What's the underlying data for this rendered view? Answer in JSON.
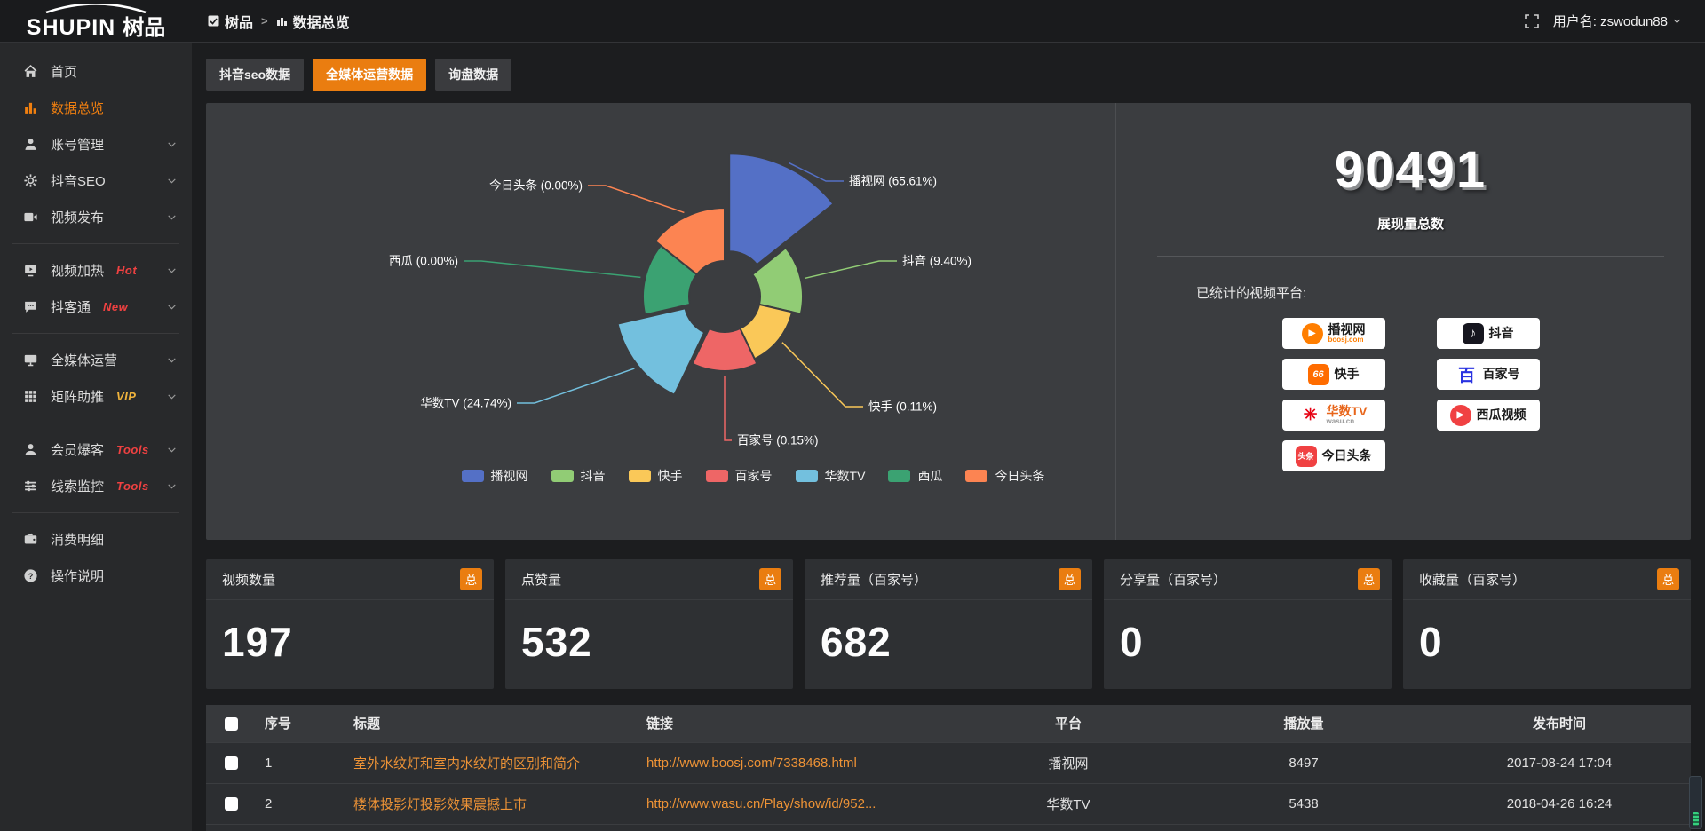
{
  "topbar": {
    "logo_en": "SHUPIN",
    "logo_cn": "树品",
    "breadcrumb": [
      "树品",
      "数据总览"
    ],
    "breadcrumb_sep": ">",
    "username": "用户名: zswodun88"
  },
  "sidebar": {
    "items": [
      {
        "label": "首页",
        "icon": "home",
        "active": false,
        "chevron": false,
        "divider_after": false
      },
      {
        "label": "数据总览",
        "icon": "chart",
        "active": true,
        "chevron": false,
        "divider_after": false
      },
      {
        "label": "账号管理",
        "icon": "user",
        "active": false,
        "chevron": true,
        "divider_after": false
      },
      {
        "label": "抖音SEO",
        "icon": "gear",
        "active": false,
        "chevron": true,
        "divider_after": false
      },
      {
        "label": "视频发布",
        "icon": "video",
        "active": false,
        "chevron": true,
        "divider_after": true
      },
      {
        "label": "视频加热",
        "icon": "heat",
        "badge": "Hot",
        "badge_color": "#ef4141",
        "active": false,
        "chevron": true,
        "divider_after": false
      },
      {
        "label": "抖客通",
        "icon": "chat",
        "badge": "New",
        "badge_color": "#ef4141",
        "active": false,
        "chevron": true,
        "divider_after": true
      },
      {
        "label": "全媒体运营",
        "icon": "monitor",
        "active": false,
        "chevron": true,
        "divider_after": false
      },
      {
        "label": "矩阵助推",
        "icon": "grid",
        "badge": "VIP",
        "badge_color": "#f0b33c",
        "active": false,
        "chevron": true,
        "divider_after": true
      },
      {
        "label": "会员爆客",
        "icon": "user",
        "badge": "Tools",
        "badge_color": "#ef4141",
        "active": false,
        "chevron": true,
        "divider_after": false
      },
      {
        "label": "线索监控",
        "icon": "sliders",
        "badge": "Tools",
        "badge_color": "#ef4141",
        "active": false,
        "chevron": true,
        "divider_after": true
      },
      {
        "label": "消费明细",
        "icon": "wallet",
        "active": false,
        "chevron": false,
        "divider_after": false
      },
      {
        "label": "操作说明",
        "icon": "help",
        "active": false,
        "chevron": false,
        "divider_after": false
      }
    ]
  },
  "tabs": [
    {
      "label": "抖音seo数据",
      "active": false
    },
    {
      "label": "全媒体运营数据",
      "active": true
    },
    {
      "label": "询盘数据",
      "active": false
    }
  ],
  "chart_data": {
    "type": "pie",
    "variant": "nightingale_rose",
    "label_format": "{name} ({percent}%)",
    "legend_position": "bottom",
    "series": [
      {
        "name": "播视网",
        "percent": 65.61,
        "color": "#5470c6"
      },
      {
        "name": "抖音",
        "percent": 9.4,
        "color": "#91cc75"
      },
      {
        "name": "快手",
        "percent": 0.11,
        "color": "#fac858"
      },
      {
        "name": "百家号",
        "percent": 0.15,
        "color": "#ee6666"
      },
      {
        "name": "华数TV",
        "percent": 24.74,
        "color": "#73c0de"
      },
      {
        "name": "西瓜",
        "percent": 0.0,
        "color": "#3ba272"
      },
      {
        "name": "今日头条",
        "percent": 0.0,
        "color": "#fc8452"
      }
    ],
    "legend": [
      "播视网",
      "抖音",
      "快手",
      "百家号",
      "华数TV",
      "西瓜",
      "今日头条"
    ],
    "radius_hints": [
      150,
      88,
      78,
      84,
      118,
      92,
      100
    ],
    "inner_radius_hint": 40,
    "selected_offsets": [
      12,
      0,
      0,
      0,
      7,
      0,
      0
    ]
  },
  "summary": {
    "total_value": "90491",
    "total_label": "展现量总数",
    "platforms_label": "已统计的视频平台:",
    "platforms": [
      {
        "name": "播视网",
        "sub": "boosj.com",
        "style": "boosj"
      },
      {
        "name": "抖音",
        "style": "douyin"
      },
      {
        "name": "快手",
        "style": "kuaishou"
      },
      {
        "name": "百家号",
        "style": "baijia"
      },
      {
        "name": "华数TV",
        "sub": "wasu.cn",
        "style": "wasu"
      },
      {
        "name": "西瓜视频",
        "style": "xigua"
      },
      {
        "name": "今日头条",
        "style": "toutiao"
      }
    ]
  },
  "stat_cards": [
    {
      "title": "视频数量",
      "badge": "总",
      "value": "197"
    },
    {
      "title": "点赞量",
      "badge": "总",
      "value": "532"
    },
    {
      "title": "推荐量（百家号）",
      "badge": "总",
      "value": "682"
    },
    {
      "title": "分享量（百家号）",
      "badge": "总",
      "value": "0"
    },
    {
      "title": "收藏量（百家号）",
      "badge": "总",
      "value": "0"
    }
  ],
  "table": {
    "headers": [
      "序号",
      "标题",
      "链接",
      "平台",
      "播放量",
      "发布时间"
    ],
    "rows": [
      {
        "index": "1",
        "title": "室外水纹灯和室内水纹灯的区别和简介",
        "link": "http://www.boosj.com/7338468.html",
        "platform": "播视网",
        "views": "8497",
        "time": "2017-08-24 17:04"
      },
      {
        "index": "2",
        "title": "楼体投影灯投影效果震撼上市",
        "link": "http://www.wasu.cn/Play/show/id/952...",
        "platform": "华数TV",
        "views": "5438",
        "time": "2018-04-26 16:24"
      }
    ]
  },
  "colors": {
    "accent_orange": "#ea7d10",
    "active_text_orange": "#f07f10",
    "link_orange": "#ee9336",
    "panel_bg": "#3b3d40"
  }
}
